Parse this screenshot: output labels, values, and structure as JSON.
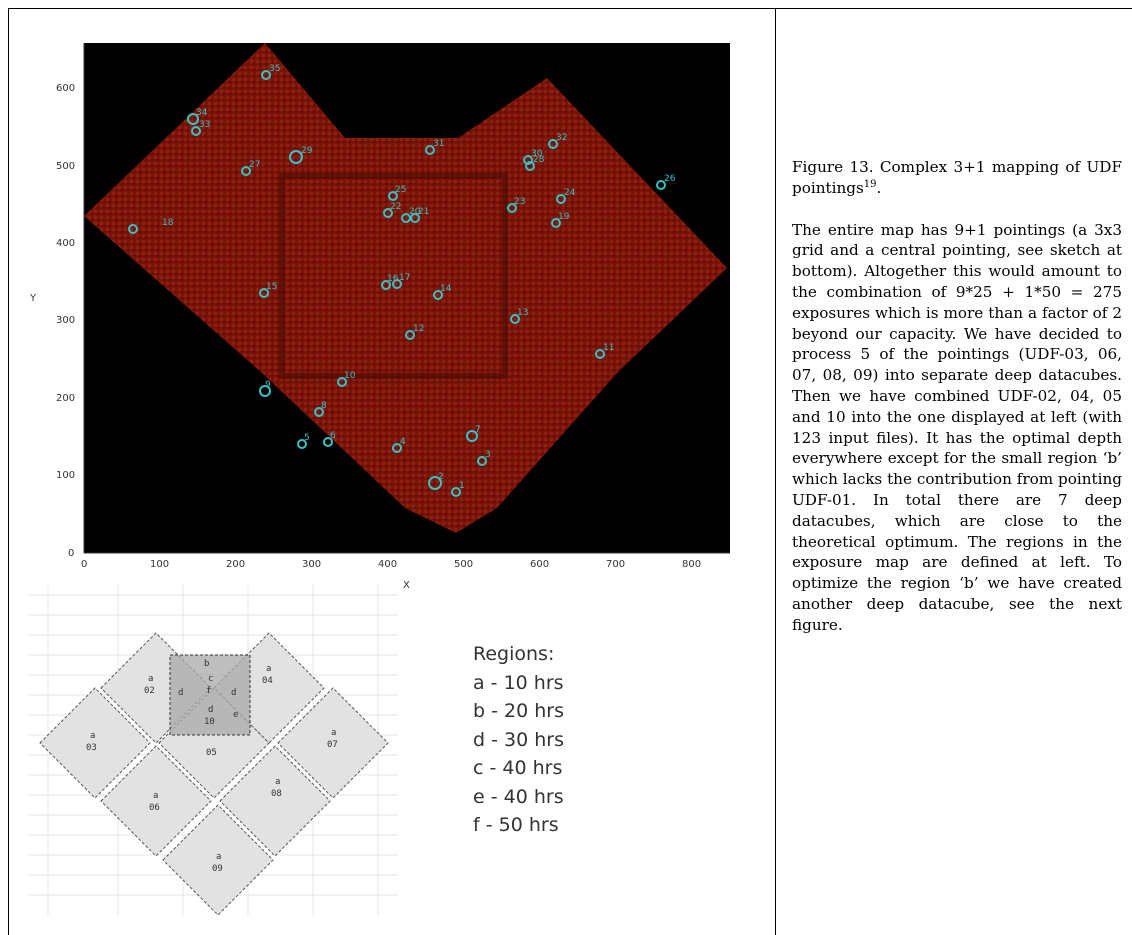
{
  "caption": {
    "title": "Figure 13. Complex 3+1 mapping of UDF pointings",
    "ref": "19",
    "title_end": ".",
    "body": "The entire map has 9+1 pointings (a 3x3 grid and a central pointing, see sketch at bottom). Altogether this would amount to the combination of 9*25 + 1*50 = 275 exposures which is more than a factor of 2 beyond our capacity. We have decided to process 5 of the pointings (UDF-03, 06, 07, 08, 09) into separate deep datacubes. Then we have combined UDF-02, 04, 05 and 10 into the one displayed at left (with 123 input files). It has the optimal depth everywhere except for the small region ‘b’ which lacks the contribution from pointing UDF-01. In total there are 7 deep datacubes, which are close to the theoretical optimum. The regions in the exposure map are defined at left. To optimize the region ‘b’ we have created another deep datacube, see the next figure."
  },
  "plot": {
    "xlabel": "X",
    "ylabel": "Y",
    "xticks": [
      "0",
      "100",
      "200",
      "300",
      "400",
      "500",
      "600",
      "700",
      "800"
    ],
    "yticks": [
      "0",
      "100",
      "200",
      "300",
      "400",
      "500",
      "600"
    ],
    "sources": [
      "1",
      "2",
      "3",
      "4",
      "5",
      "6",
      "7",
      "8",
      "9",
      "10",
      "11",
      "12",
      "13",
      "14",
      "15",
      "16",
      "17",
      "18",
      "19",
      "20",
      "21",
      "22",
      "23",
      "24",
      "25",
      "26",
      "27",
      "28",
      "29",
      "30",
      "31",
      "32",
      "33",
      "34",
      "35",
      "36"
    ]
  },
  "sketch": {
    "pointings": [
      {
        "region": "a",
        "id": "02"
      },
      {
        "region": "a",
        "id": "04"
      },
      {
        "region": "a",
        "id": "03"
      },
      {
        "region": "a",
        "id": "07"
      },
      {
        "region": "a",
        "id": "06"
      },
      {
        "region": "a",
        "id": "08"
      },
      {
        "region": "a",
        "id": "09"
      },
      {
        "region": "",
        "id": "05"
      }
    ],
    "central": {
      "region": "d",
      "id": "10"
    },
    "small_letters": [
      "b",
      "d",
      "f",
      "d",
      "c",
      "e"
    ]
  },
  "regions": {
    "title": "Regions:",
    "items": [
      "a - 10 hrs",
      "b - 20 hrs",
      "d - 30 hrs",
      "c - 40 hrs",
      "e - 40 hrs",
      "f - 50 hrs"
    ]
  },
  "colors": {
    "map_background": "#000000",
    "map_fill": "#7a1408",
    "source_marker": "#35c3c7",
    "sketch_fill": "#e2e2e2",
    "sketch_center": "#a8a8a8"
  }
}
